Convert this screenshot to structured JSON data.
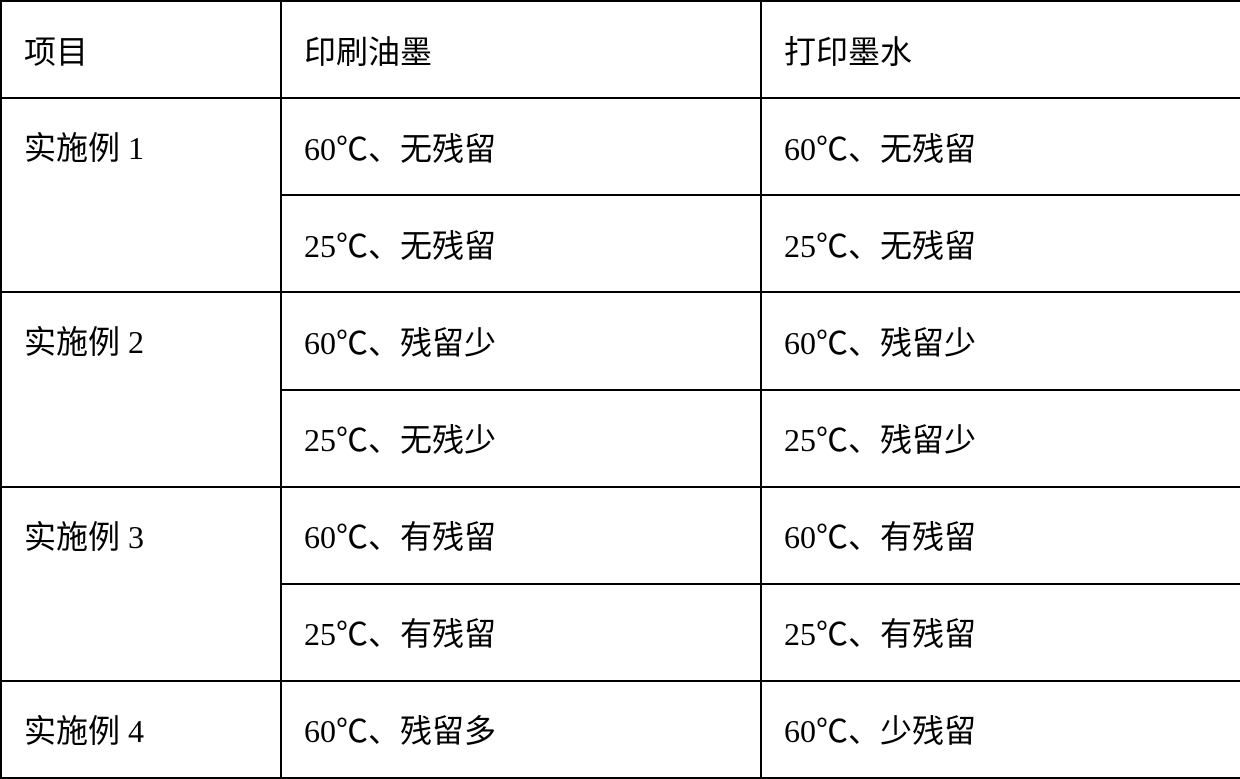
{
  "table": {
    "type": "table",
    "border_color": "#000000",
    "background_color": "#ffffff",
    "text_color": "#000000",
    "font_family": "KaiTi",
    "font_size": 32,
    "header": {
      "col1": "项目",
      "col2": "印刷油墨",
      "col3": "打印墨水"
    },
    "rows": [
      {
        "label": "实施例 1",
        "rowspan": 2,
        "sub_rows": [
          {
            "col2": "60℃、无残留",
            "col3": "60℃、无残留"
          },
          {
            "col2": "25℃、无残留",
            "col3": "25℃、无残留"
          }
        ]
      },
      {
        "label": "实施例 2",
        "rowspan": 2,
        "sub_rows": [
          {
            "col2": "60℃、残留少",
            "col3": "60℃、残留少"
          },
          {
            "col2": "25℃、无残少",
            "col3": "25℃、残留少"
          }
        ]
      },
      {
        "label": "实施例 3",
        "rowspan": 2,
        "sub_rows": [
          {
            "col2": "60℃、有残留",
            "col3": "60℃、有残留"
          },
          {
            "col2": "25℃、有残留",
            "col3": "25℃、有残留"
          }
        ]
      },
      {
        "label": "实施例 4",
        "rowspan": 1,
        "sub_rows": [
          {
            "col2": "60℃、残留多",
            "col3": "60℃、少残留"
          }
        ]
      }
    ]
  }
}
